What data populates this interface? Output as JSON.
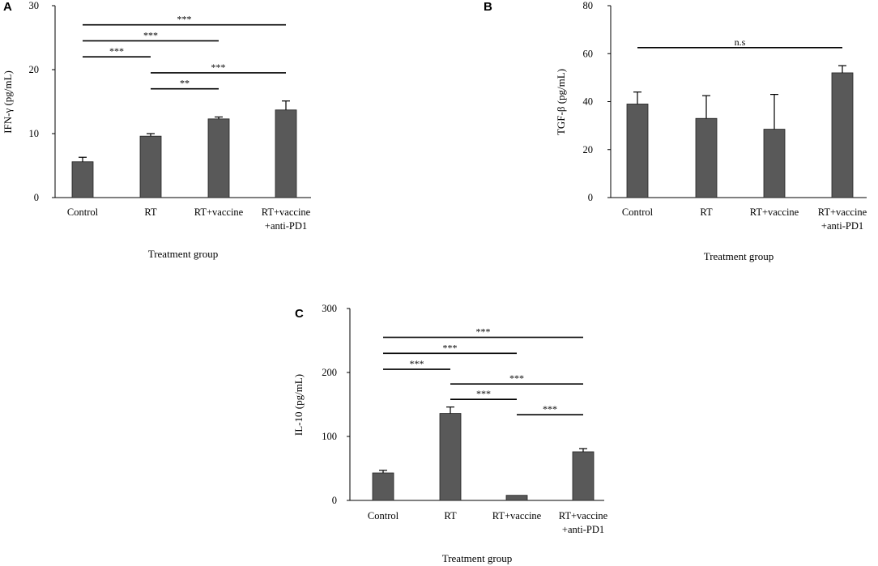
{
  "colors": {
    "bar": "#595959",
    "axis": "#000000",
    "background": "#ffffff"
  },
  "chart_data": [
    {
      "panel": "A",
      "type": "bar",
      "categories": [
        "Control",
        "RT",
        "RT+vaccine",
        "RT+vaccine\n+anti-PD1"
      ],
      "values": [
        5.6,
        9.6,
        12.3,
        13.7
      ],
      "errors": [
        0.7,
        0.4,
        0.3,
        1.4
      ],
      "xlabel": "Treatment group",
      "ylabel": "IFN-γ (pg/mL)",
      "ylim": [
        0,
        30
      ],
      "yticks": [
        0,
        10,
        20,
        30
      ],
      "comparisons": [
        {
          "from": 0,
          "to": 3,
          "y": 27,
          "label": "***"
        },
        {
          "from": 0,
          "to": 2,
          "y": 24.5,
          "label": "***"
        },
        {
          "from": 0,
          "to": 1,
          "y": 22,
          "label": "***"
        },
        {
          "from": 1,
          "to": 3,
          "y": 19.5,
          "label": "***"
        },
        {
          "from": 1,
          "to": 2,
          "y": 17,
          "label": "**"
        }
      ]
    },
    {
      "panel": "B",
      "type": "bar",
      "categories": [
        "Control",
        "RT",
        "RT+vaccine",
        "RT+vaccine\n+anti-PD1"
      ],
      "values": [
        39,
        33,
        28.5,
        52
      ],
      "errors": [
        5,
        9.5,
        14.5,
        3
      ],
      "xlabel": "Treatment group",
      "ylabel": "TGF-β (pg/mL)",
      "ylim": [
        0,
        80
      ],
      "yticks": [
        0,
        20,
        40,
        60,
        80
      ],
      "comparisons": [
        {
          "from": 0,
          "to": 3,
          "y": 62.5,
          "label": "n.s"
        }
      ]
    },
    {
      "panel": "C",
      "type": "bar",
      "categories": [
        "Control",
        "RT",
        "RT+vaccine",
        "RT+vaccine\n+anti-PD1"
      ],
      "values": [
        43,
        136,
        8,
        76
      ],
      "errors": [
        4,
        10,
        0,
        5
      ],
      "xlabel": "Treatment group",
      "ylabel": "IL-10 (pg/mL)",
      "ylim": [
        0,
        300
      ],
      "yticks": [
        0,
        100,
        200,
        300
      ],
      "comparisons": [
        {
          "from": 0,
          "to": 3,
          "y": 255,
          "label": "***"
        },
        {
          "from": 0,
          "to": 2,
          "y": 230,
          "label": "***"
        },
        {
          "from": 0,
          "to": 1,
          "y": 205,
          "label": "***"
        },
        {
          "from": 1,
          "to": 3,
          "y": 182,
          "label": "***"
        },
        {
          "from": 1,
          "to": 2,
          "y": 158,
          "label": "***"
        },
        {
          "from": 2,
          "to": 3,
          "y": 134,
          "label": "***"
        }
      ]
    }
  ]
}
